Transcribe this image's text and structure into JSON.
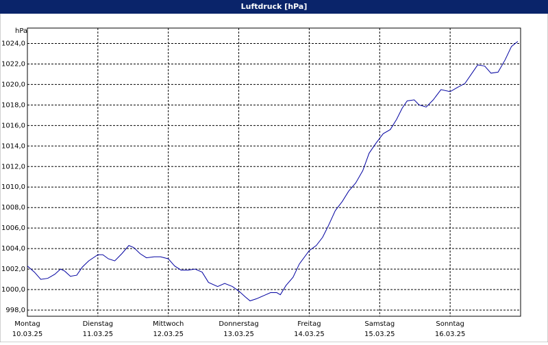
{
  "chart_data": {
    "type": "line",
    "title": "Luftdruck [hPa]",
    "y_unit": "hPa",
    "x": [
      0,
      0.1,
      0.19,
      0.29,
      0.39,
      0.47,
      0.53,
      0.61,
      0.7,
      0.78,
      0.87,
      1.0,
      1.07,
      1.15,
      1.24,
      1.34,
      1.44,
      1.51,
      1.6,
      1.69,
      1.8,
      1.89,
      2.0,
      2.09,
      2.18,
      2.28,
      2.38,
      2.48,
      2.57,
      2.7,
      2.8,
      2.91,
      3.01,
      3.09,
      3.16,
      3.25,
      3.35,
      3.45,
      3.54,
      3.59,
      3.67,
      3.77,
      3.86,
      4.0,
      4.1,
      4.19,
      4.27,
      4.37,
      4.47,
      4.56,
      4.66,
      4.76,
      4.85,
      4.95,
      5.05,
      5.15,
      5.24,
      5.32,
      5.39,
      5.49,
      5.56,
      5.66,
      5.76,
      5.87,
      6.0,
      6.1,
      6.21,
      6.31,
      6.39,
      6.49,
      6.58,
      6.68,
      6.78,
      6.87,
      6.96
    ],
    "series": [
      {
        "name": "Luftdruck",
        "color": "#0000a0",
        "values": [
          1002.3,
          1001.7,
          1001.0,
          1001.1,
          1001.5,
          1002.0,
          1001.8,
          1001.3,
          1001.4,
          1002.2,
          1002.8,
          1003.4,
          1003.4,
          1003.0,
          1002.8,
          1003.5,
          1004.3,
          1004.1,
          1003.5,
          1003.1,
          1003.2,
          1003.2,
          1003.0,
          1002.3,
          1001.9,
          1001.9,
          1002.0,
          1001.7,
          1000.7,
          1000.3,
          1000.6,
          1000.3,
          999.8,
          999.3,
          998.9,
          999.1,
          999.4,
          999.7,
          999.7,
          999.5,
          1000.4,
          1001.2,
          1002.5,
          1003.8,
          1004.3,
          1005.1,
          1006.2,
          1007.7,
          1008.6,
          1009.6,
          1010.4,
          1011.6,
          1013.3,
          1014.3,
          1015.2,
          1015.6,
          1016.6,
          1017.7,
          1018.4,
          1018.5,
          1018.0,
          1017.8,
          1018.5,
          1019.5,
          1019.3,
          1019.7,
          1020.1,
          1021.1,
          1021.9,
          1021.8,
          1021.1,
          1021.2,
          1022.4,
          1023.7,
          1024.2
        ]
      }
    ],
    "xlim": [
      0,
      7
    ],
    "xticks": [
      {
        "value": 0,
        "label": [
          "Montag",
          "10.03.25"
        ]
      },
      {
        "value": 1,
        "label": [
          "Dienstag",
          "11.03.25"
        ]
      },
      {
        "value": 2,
        "label": [
          "Mittwoch",
          "12.03.25"
        ]
      },
      {
        "value": 3,
        "label": [
          "Donnerstag",
          "13.03.25"
        ]
      },
      {
        "value": 4,
        "label": [
          "Freitag",
          "14.03.25"
        ]
      },
      {
        "value": 5,
        "label": [
          "Samstag",
          "15.03.25"
        ]
      },
      {
        "value": 6,
        "label": [
          "Sonntag",
          "16.03.25"
        ]
      }
    ],
    "ylim": [
      997.4,
      1025.5
    ],
    "yticks": [
      {
        "value": 998,
        "label": "998,0"
      },
      {
        "value": 1000,
        "label": "1000,0"
      },
      {
        "value": 1002,
        "label": "1002,0"
      },
      {
        "value": 1004,
        "label": "1004,0"
      },
      {
        "value": 1006,
        "label": "1006,0"
      },
      {
        "value": 1008,
        "label": "1008,0"
      },
      {
        "value": 1010,
        "label": "1010,0"
      },
      {
        "value": 1012,
        "label": "1012,0"
      },
      {
        "value": 1014,
        "label": "1014,0"
      },
      {
        "value": 1016,
        "label": "1016,0"
      },
      {
        "value": 1018,
        "label": "1018,0"
      },
      {
        "value": 1020,
        "label": "1020,0"
      },
      {
        "value": 1022,
        "label": "1022,0"
      },
      {
        "value": 1024,
        "label": "1024,0"
      }
    ],
    "grid": true
  }
}
